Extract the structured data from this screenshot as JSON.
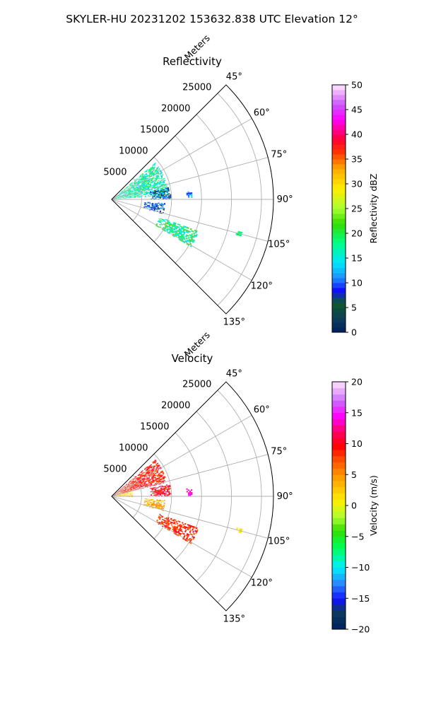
{
  "figure": {
    "suptitle": "SKYLER-HU  20231202  153632.838 UTC Elevation 12°"
  },
  "chart_data": [
    {
      "type": "heatmap",
      "projection": "polar-sector",
      "title": "Reflectivity",
      "range_axis_label": "Meters",
      "range_ticks": [
        "5000",
        "10000",
        "15000",
        "20000",
        "25000"
      ],
      "range_tick_values": [
        5000,
        10000,
        15000,
        20000,
        25000
      ],
      "range_max": 27000,
      "azimuth_ticks": [
        "45°",
        "60°",
        "75°",
        "90°",
        "105°",
        "120°",
        "135°"
      ],
      "azimuth_tick_values": [
        45,
        60,
        75,
        90,
        105,
        120,
        135
      ],
      "azimuth_range": [
        45,
        135
      ],
      "grid": true,
      "colorbar": {
        "label": "Reflectivity dBZ",
        "ticks": [
          "0",
          "5",
          "10",
          "15",
          "20",
          "25",
          "30",
          "35",
          "40",
          "45",
          "50"
        ],
        "range": [
          0,
          50
        ],
        "levels": 50
      },
      "echoes": [
        {
          "az_min": 50,
          "az_max": 86,
          "r_min": 300,
          "r_max": 9500,
          "value_min": 12,
          "value_max": 22
        },
        {
          "az_min": 78,
          "az_max": 90,
          "r_min": 6500,
          "r_max": 9800,
          "value_min": 2,
          "value_max": 13
        },
        {
          "az_min": 84,
          "az_max": 90,
          "r_min": 12500,
          "r_max": 13500,
          "value_min": 8,
          "value_max": 15
        },
        {
          "az_min": 94,
          "az_max": 106,
          "r_min": 5500,
          "r_max": 9000,
          "value_min": 6,
          "value_max": 13
        },
        {
          "az_min": 110,
          "az_max": 121,
          "r_min": 8500,
          "r_max": 15500,
          "value_min": 13,
          "value_max": 23
        },
        {
          "az_min": 104,
          "az_max": 106,
          "r_min": 21500,
          "r_max": 22500,
          "value_min": 16,
          "value_max": 22
        }
      ]
    },
    {
      "type": "heatmap",
      "projection": "polar-sector",
      "title": "Velocity",
      "range_axis_label": "Meters",
      "range_ticks": [
        "5000",
        "10000",
        "15000",
        "20000",
        "25000"
      ],
      "range_tick_values": [
        5000,
        10000,
        15000,
        20000,
        25000
      ],
      "range_max": 27000,
      "azimuth_ticks": [
        "45°",
        "60°",
        "75°",
        "90°",
        "105°",
        "120°",
        "135°"
      ],
      "azimuth_tick_values": [
        45,
        60,
        75,
        90,
        105,
        120,
        135
      ],
      "azimuth_range": [
        45,
        135
      ],
      "grid": true,
      "colorbar": {
        "label": "Velocity (m/s)",
        "ticks": [
          "−20",
          "−15",
          "−10",
          "−5",
          "0",
          "5",
          "10",
          "15",
          "20"
        ],
        "range": [
          -20,
          20
        ],
        "levels": 40
      },
      "echoes": [
        {
          "az_min": 50,
          "az_max": 76,
          "r_min": 300,
          "r_max": 9500,
          "value_min": 6,
          "value_max": 12
        },
        {
          "az_min": 76,
          "az_max": 92,
          "r_min": 300,
          "r_max": 3500,
          "value_min": 0,
          "value_max": 4
        },
        {
          "az_min": 78,
          "az_max": 90,
          "r_min": 6500,
          "r_max": 9800,
          "value_min": 7,
          "value_max": 13
        },
        {
          "az_min": 84,
          "az_max": 90,
          "r_min": 12500,
          "r_max": 13500,
          "value_min": 12,
          "value_max": 15
        },
        {
          "az_min": 94,
          "az_max": 106,
          "r_min": 5500,
          "r_max": 9000,
          "value_min": 2,
          "value_max": 6
        },
        {
          "az_min": 110,
          "az_max": 121,
          "r_min": 8500,
          "r_max": 15500,
          "value_min": 6,
          "value_max": 11
        },
        {
          "az_min": 104,
          "az_max": 106,
          "r_min": 21500,
          "r_max": 22500,
          "value_min": 0,
          "value_max": 2
        }
      ]
    }
  ]
}
